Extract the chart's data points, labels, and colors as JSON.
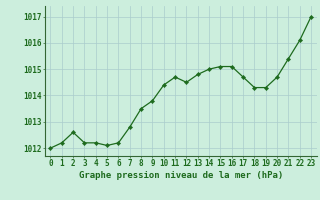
{
  "x": [
    0,
    1,
    2,
    3,
    4,
    5,
    6,
    7,
    8,
    9,
    10,
    11,
    12,
    13,
    14,
    15,
    16,
    17,
    18,
    19,
    20,
    21,
    22,
    23
  ],
  "y": [
    1012.0,
    1012.2,
    1012.6,
    1012.2,
    1012.2,
    1012.1,
    1012.2,
    1012.8,
    1013.5,
    1013.8,
    1014.4,
    1014.7,
    1014.5,
    1014.8,
    1015.0,
    1015.1,
    1015.1,
    1014.7,
    1014.3,
    1014.3,
    1014.7,
    1015.4,
    1016.1,
    1017.0
  ],
  "line_color": "#1e6b1e",
  "marker": "D",
  "marker_size": 2.2,
  "linewidth": 0.9,
  "bg_color": "#cceedd",
  "grid_color": "#aacccc",
  "xlabel": "Graphe pression niveau de la mer (hPa)",
  "xlabel_color": "#1e6b1e",
  "xlabel_fontsize": 6.5,
  "tick_color": "#1e6b1e",
  "tick_fontsize": 5.5,
  "ytick_labels": [
    "1012",
    "1013",
    "1014",
    "1015",
    "1016",
    "1017"
  ],
  "ytick_values": [
    1012,
    1013,
    1014,
    1015,
    1016,
    1017
  ],
  "ylim": [
    1011.7,
    1017.4
  ],
  "xlim": [
    -0.5,
    23.5
  ]
}
